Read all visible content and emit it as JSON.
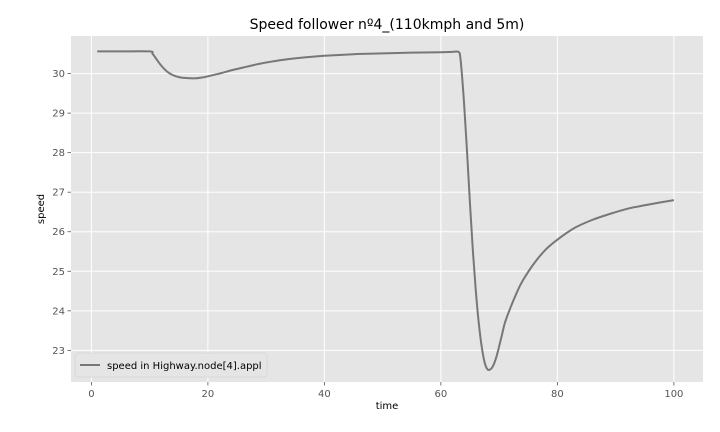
{
  "chart_data": {
    "type": "line",
    "title": "Speed follower nº4_(110kmph and 5m)",
    "xlabel": "time",
    "ylabel": "speed",
    "xlim": [
      -3.5,
      105
    ],
    "ylim": [
      22.2,
      30.95
    ],
    "xticks": [
      0,
      20,
      40,
      60,
      80,
      100
    ],
    "yticks": [
      23,
      24,
      25,
      26,
      27,
      28,
      29,
      30
    ],
    "grid": true,
    "legend_position": "lower-left",
    "colors": {
      "background": "#e5e5e5",
      "grid": "#ffffff",
      "line": "#777777"
    },
    "series": [
      {
        "name": "speed in Highway.node[4].appl",
        "x": [
          1,
          5,
          10,
          10.5,
          11,
          12,
          13,
          14,
          15,
          16,
          17,
          18,
          19,
          20,
          22,
          24,
          26,
          28,
          30,
          33,
          36,
          40,
          45,
          50,
          55,
          60,
          62,
          63,
          63.3,
          63.6,
          64,
          64.5,
          65,
          65.5,
          66,
          66.5,
          67,
          67.5,
          68,
          68.5,
          69,
          69.5,
          70,
          70.5,
          71,
          72,
          73,
          74,
          76,
          78,
          80,
          83,
          86,
          89,
          92,
          95,
          98,
          100
        ],
        "y": [
          30.56,
          30.56,
          30.56,
          30.5,
          30.4,
          30.2,
          30.05,
          29.96,
          29.91,
          29.89,
          29.88,
          29.88,
          29.9,
          29.93,
          30.0,
          30.08,
          30.15,
          30.22,
          30.28,
          30.35,
          30.4,
          30.45,
          30.49,
          30.51,
          30.53,
          30.54,
          30.55,
          30.55,
          30.45,
          30.0,
          29.2,
          28.0,
          26.7,
          25.5,
          24.5,
          23.7,
          23.1,
          22.7,
          22.52,
          22.52,
          22.62,
          22.82,
          23.1,
          23.4,
          23.7,
          24.1,
          24.45,
          24.75,
          25.2,
          25.55,
          25.8,
          26.1,
          26.3,
          26.45,
          26.58,
          26.67,
          26.75,
          26.8
        ]
      }
    ]
  }
}
